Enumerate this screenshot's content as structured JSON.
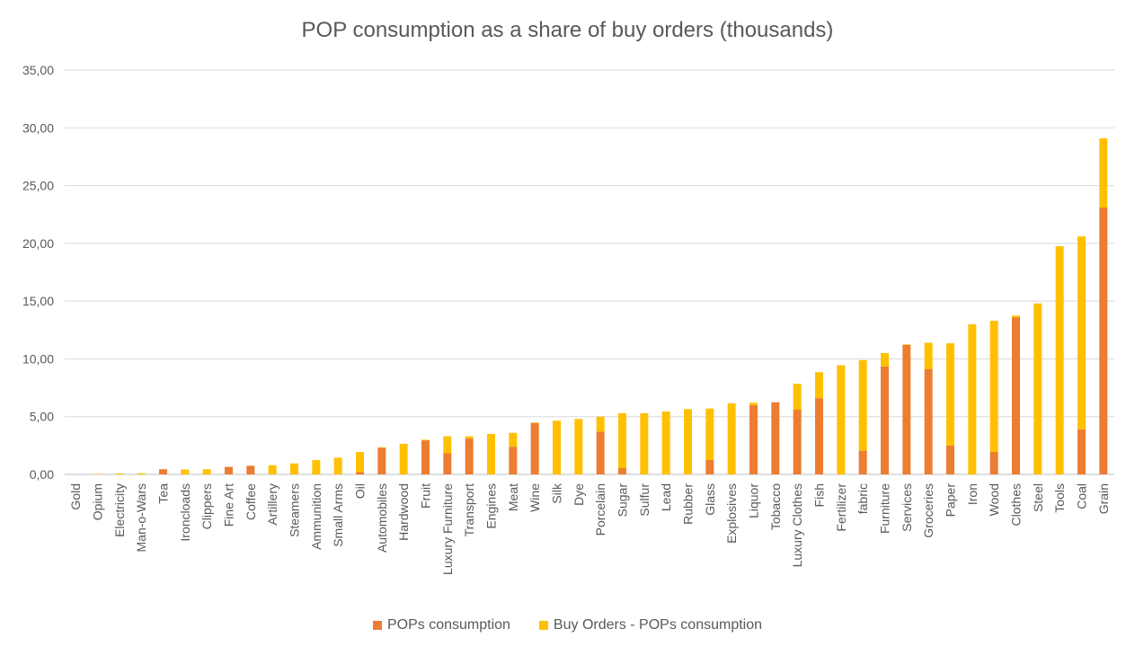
{
  "chart_data": {
    "type": "bar",
    "stacked": true,
    "title": "POP consumption as a share of buy orders (thousands)",
    "xlabel": "",
    "ylabel": "",
    "ylim": [
      0,
      35
    ],
    "yticks": [
      "0,00",
      "5,00",
      "10,00",
      "15,00",
      "20,00",
      "25,00",
      "30,00",
      "35,00"
    ],
    "grid": true,
    "legend_position": "bottom",
    "categories": [
      "Gold",
      "Opium",
      "Electricity",
      "Man-o-Wars",
      "Tea",
      "Ironcloads",
      "Clippers",
      "Fine Art",
      "Coffee",
      "Artillery",
      "Steamers",
      "Ammunition",
      "Small Arms",
      "Oil",
      "Automobiles",
      "Hardwood",
      "Fruit",
      "Luxury Furniture",
      "Transport",
      "Engines",
      "Meat",
      "Wine",
      "Silk",
      "Dye",
      "Porcelain",
      "Sugar",
      "Sulfur",
      "Lead",
      "Rubber",
      "Glass",
      "Explosives",
      "Liquor",
      "Tobacco",
      "Luxury Clothes",
      "Fish",
      "Fertilizer",
      "fabric",
      "Furniture",
      "Services",
      "Groceries",
      "Paper",
      "Iron",
      "Wood",
      "Clothes",
      "Steel",
      "Tools",
      "Coal",
      "Grain"
    ],
    "series": [
      {
        "name": "POPs consumption",
        "color": "#ED7D31",
        "values": [
          0,
          0,
          0,
          0,
          0.45,
          0,
          0,
          0.65,
          0.75,
          0,
          0,
          0,
          0,
          0.2,
          2.3,
          0,
          2.95,
          1.85,
          3.1,
          0,
          2.4,
          4.45,
          0,
          0,
          3.7,
          0.55,
          0,
          0,
          0,
          1.25,
          0,
          6.0,
          6.25,
          5.6,
          6.6,
          0,
          2.05,
          9.35,
          11.2,
          9.1,
          2.5,
          0,
          1.95,
          13.6,
          0,
          0,
          3.9,
          23.1
        ]
      },
      {
        "name": "Buy Orders - POPs consumption",
        "color": "#FFC000",
        "values": [
          0,
          0.05,
          0.08,
          0.1,
          0,
          0.42,
          0.45,
          0,
          0,
          0.8,
          0.95,
          1.25,
          1.45,
          1.75,
          0.05,
          2.65,
          0.05,
          1.45,
          0.2,
          3.5,
          1.2,
          0.05,
          4.65,
          4.8,
          1.3,
          4.75,
          5.3,
          5.45,
          5.65,
          4.45,
          6.15,
          0.2,
          0,
          2.25,
          2.25,
          9.45,
          7.85,
          1.15,
          0.05,
          2.3,
          8.85,
          13.0,
          11.35,
          0.15,
          14.8,
          19.75,
          16.7,
          6.0
        ]
      }
    ]
  }
}
